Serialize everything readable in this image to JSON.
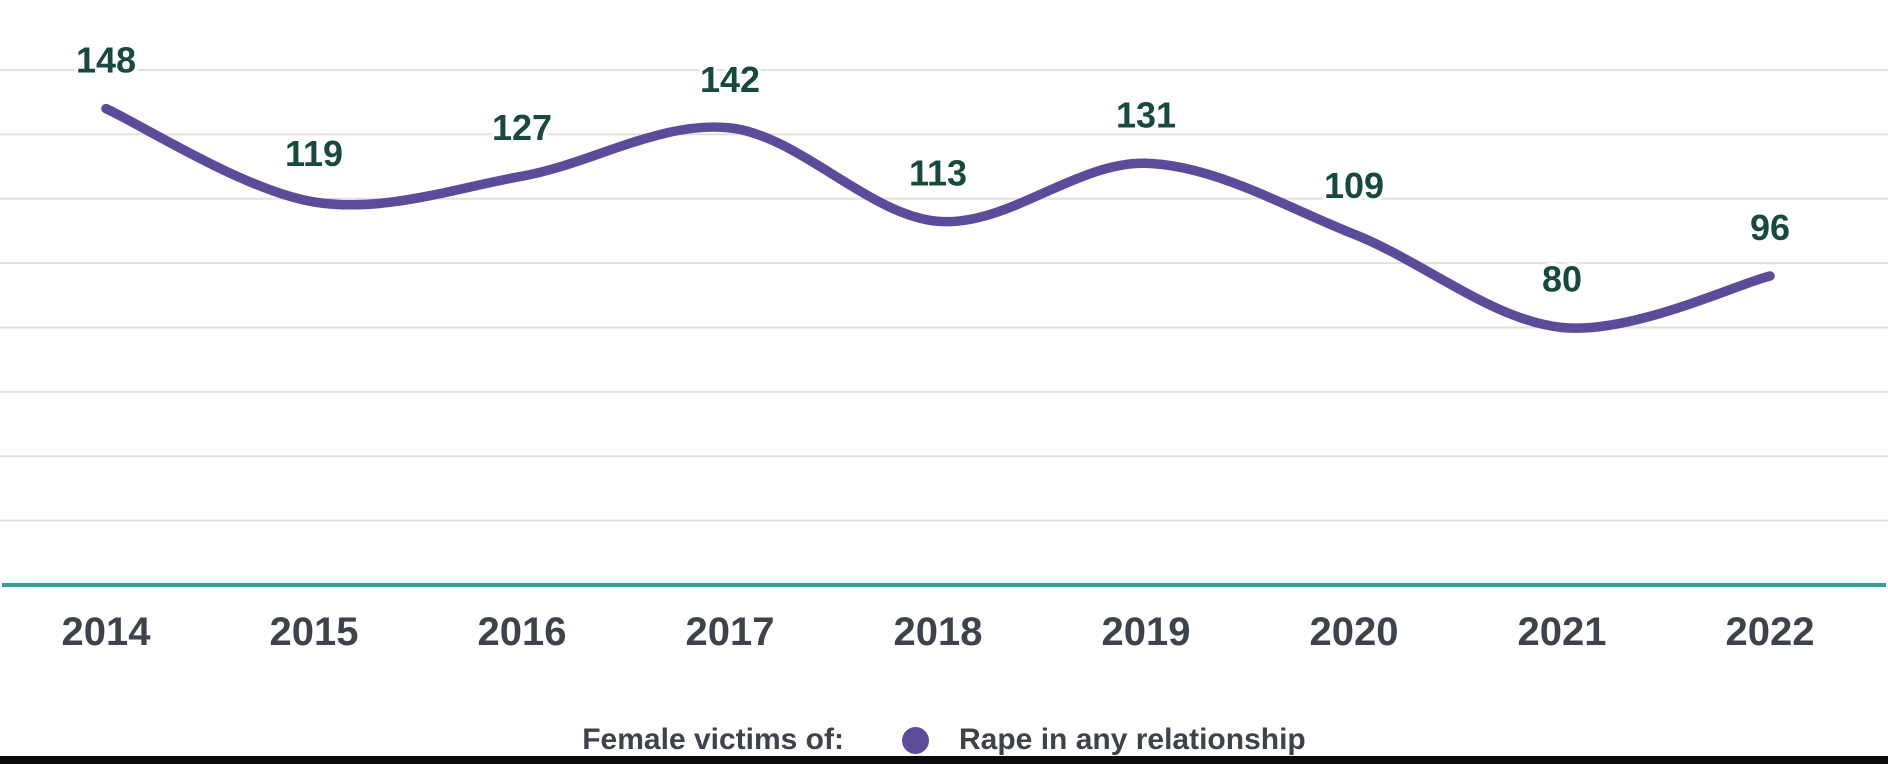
{
  "chart_data": {
    "type": "line",
    "categories": [
      "2014",
      "2015",
      "2016",
      "2017",
      "2018",
      "2019",
      "2020",
      "2021",
      "2022"
    ],
    "series": [
      {
        "name": "Rape in any relationship",
        "values": [
          148,
          119,
          127,
          142,
          113,
          131,
          109,
          80,
          96
        ]
      }
    ],
    "title": "",
    "xlabel": "",
    "ylabel": "",
    "ylim": [
      0,
      160
    ],
    "gridline_step": 20,
    "grid": "horizontal",
    "y_tick_labels_visible": false,
    "data_labels_visible": true,
    "line_style": "smooth-spline",
    "legend_position": "bottom",
    "legend_prefix": "Female victims of:",
    "colors": {
      "line": "#5C4B99",
      "data_label": "#17493F",
      "axis_label": "#3E424B",
      "gridline": "#E0E0E0",
      "axis_line": "#31A095",
      "bottom_bar": "#0B0B0B",
      "background": "#FFFFFF"
    }
  },
  "legend": {
    "prefix": "Female victims of:",
    "series_label": "Rape in any relationship"
  }
}
